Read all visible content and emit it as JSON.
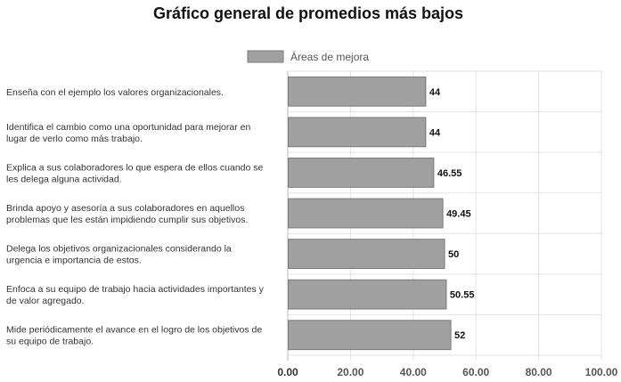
{
  "chart_data": {
    "type": "bar",
    "orientation": "horizontal",
    "title": "Gráfico general de promedios más bajos",
    "legend": {
      "position": "top-center",
      "entries": [
        "Áreas de mejora"
      ]
    },
    "series": [
      {
        "name": "Áreas de mejora",
        "color": "#a0a0a0",
        "border_color": "#7a7a7a",
        "values": [
          44,
          44,
          46.55,
          49.45,
          50,
          50.55,
          52
        ]
      }
    ],
    "categories": [
      [
        "Enseña con el ejemplo los valores organizacionales."
      ],
      [
        "Identifica el cambio como una oportunidad para mejorar en",
        "lugar de verlo como más trabajo."
      ],
      [
        "Explica a sus colaboradores lo que espera de ellos cuando se",
        "les delega alguna actividad."
      ],
      [
        "Brinda apoyo y asesoría a sus colaboradores en aquellos",
        "problemas que les están impidiendo cumplir sus objetivos."
      ],
      [
        "Delega los objetivos organizacionales considerando la",
        "urgencia e importancia de estos."
      ],
      [
        "Enfoca a su equipo de trabajo hacia actividades importantes y",
        "de valor agregado."
      ],
      [
        "Mide periódicamente el avance en el logro de los objetivos de",
        "su equipo de trabajo."
      ]
    ],
    "value_labels": [
      "44",
      "44",
      "46.55",
      "49.45",
      "50",
      "50.55",
      "52"
    ],
    "x_ticks": [
      "0.00",
      "20.00",
      "40.00",
      "60.00",
      "80.00",
      "100.00"
    ],
    "xlim": [
      0,
      100
    ],
    "grid": true
  }
}
